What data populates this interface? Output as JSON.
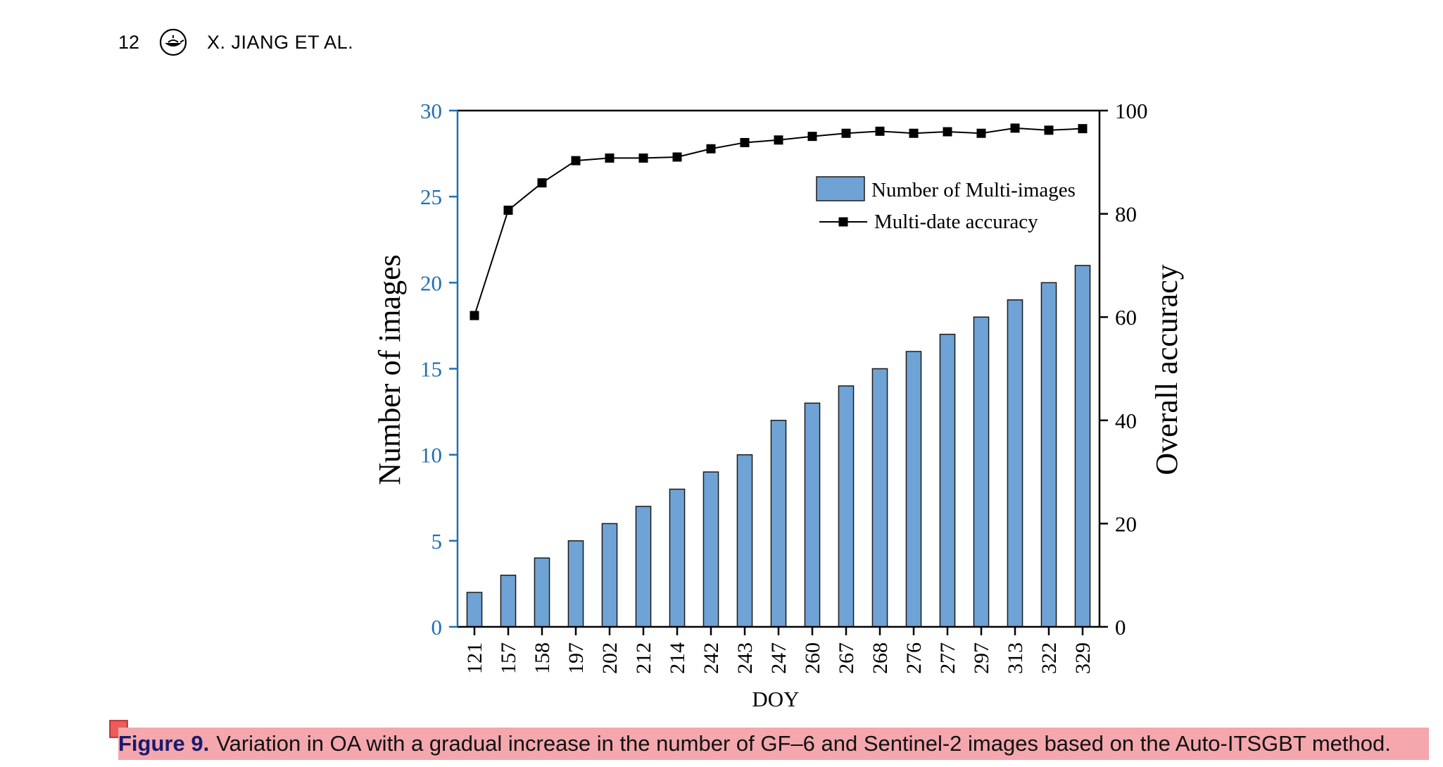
{
  "header": {
    "page_number": "12",
    "running_head": "X. JIANG ET AL.",
    "logo_icon": "publisher-lamp-icon"
  },
  "caption": {
    "label": "Figure 9.",
    "text": "Variation in OA with a gradual increase in the number of GF–6 and Sentinel-2 images based on the Auto-ITSGBT method.",
    "highlight_color": "#f4a7ad",
    "note_icon": "annotation-note-icon"
  },
  "chart_data": {
    "type": "bar",
    "categories": [
      "121",
      "157",
      "158",
      "197",
      "202",
      "212",
      "214",
      "242",
      "243",
      "247",
      "260",
      "267",
      "268",
      "276",
      "277",
      "297",
      "313",
      "322",
      "329"
    ],
    "series": [
      {
        "name": "Number of Multi-images",
        "type": "bar",
        "axis": "left",
        "color": "#6fa3d6",
        "values": [
          2,
          3,
          4,
          5,
          6,
          7,
          8,
          9,
          10,
          12,
          13,
          14,
          15,
          16,
          17,
          18,
          19,
          20,
          21
        ]
      },
      {
        "name": "Multi-date accuracy",
        "type": "line",
        "axis": "right",
        "color": "#000000",
        "values": [
          60.3,
          80.7,
          86.0,
          90.3,
          90.8,
          90.8,
          91.0,
          92.6,
          93.8,
          94.3,
          95.0,
          95.6,
          96.0,
          95.6,
          95.9,
          95.6,
          96.6,
          96.2,
          96.5
        ]
      }
    ],
    "xlabel": "DOY",
    "ylabel": "Number of images",
    "y2label": "Overall accuracy",
    "ylim": [
      0,
      30
    ],
    "y2lim": [
      0,
      100
    ],
    "yticks": [
      "0",
      "5",
      "10",
      "15",
      "20",
      "25",
      "30"
    ],
    "y2ticks": [
      "0",
      "20",
      "40",
      "60",
      "80",
      "100"
    ],
    "left_axis_color": "#1f6fb2",
    "legend_position": "top-right"
  }
}
